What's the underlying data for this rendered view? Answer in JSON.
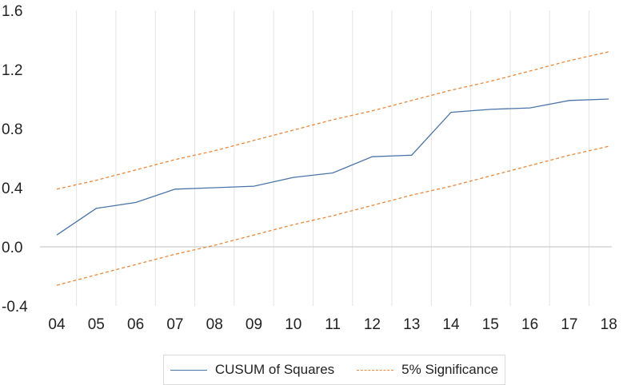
{
  "chart_data": {
    "type": "line",
    "title": "",
    "xlabel": "",
    "ylabel": "",
    "categories": [
      "04",
      "05",
      "06",
      "07",
      "08",
      "09",
      "10",
      "11",
      "12",
      "13",
      "14",
      "15",
      "16",
      "17",
      "18"
    ],
    "ylim": [
      -0.4,
      1.6
    ],
    "yticks": [
      "1.6",
      "1.2",
      "0.8",
      "0.4",
      "0.0",
      "-0.4"
    ],
    "ytick_values": [
      1.6,
      1.2,
      0.8,
      0.4,
      0.0,
      -0.4
    ],
    "grid": "vertical",
    "legend_position": "bottom",
    "series": [
      {
        "name": "CUSUM of Squares",
        "style": "solid",
        "color": "#4a74a8",
        "values": [
          0.08,
          0.26,
          0.3,
          0.39,
          0.4,
          0.41,
          0.47,
          0.5,
          0.61,
          0.62,
          0.91,
          0.93,
          0.94,
          0.99,
          1.0
        ]
      },
      {
        "name": "5% Significance",
        "style": "dashed",
        "color": "#e8883a",
        "values": [
          0.39,
          0.45,
          0.52,
          0.59,
          0.65,
          0.72,
          0.79,
          0.86,
          0.92,
          0.99,
          1.06,
          1.12,
          1.19,
          1.26,
          1.32
        ]
      },
      {
        "name": "",
        "style": "dashed",
        "color": "#e8883a",
        "values": [
          -0.26,
          -0.19,
          -0.12,
          -0.05,
          0.01,
          0.08,
          0.15,
          0.21,
          0.28,
          0.35,
          0.41,
          0.48,
          0.55,
          0.62,
          0.68
        ]
      }
    ]
  },
  "legend": {
    "items": [
      {
        "label": "CUSUM of Squares"
      },
      {
        "label": "5% Significance"
      }
    ]
  }
}
